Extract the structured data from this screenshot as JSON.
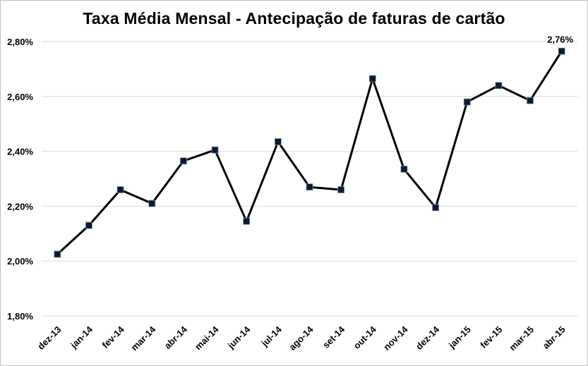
{
  "chart_data": {
    "type": "line",
    "title": "Taxa Média Mensal - Antecipação de faturas de cartão",
    "xlabel": "",
    "ylabel": "",
    "categories": [
      "dez-13",
      "jan-14",
      "fev-14",
      "mar-14",
      "abr-14",
      "mai-14",
      "jun-14",
      "jul-14",
      "ago-14",
      "set-14",
      "out-14",
      "nov-14",
      "dez-14",
      "jan-15",
      "fev-15",
      "mar-15",
      "abr-15"
    ],
    "series": [
      {
        "values": [
          2.025,
          2.13,
          2.26,
          2.21,
          2.365,
          2.405,
          2.145,
          2.435,
          2.27,
          2.26,
          2.665,
          2.335,
          2.195,
          2.58,
          2.64,
          2.585,
          2.765
        ]
      }
    ],
    "ylim": [
      1.8,
      2.8
    ],
    "yticks": [
      "1,80%",
      "2,00%",
      "2,20%",
      "2,40%",
      "2,60%",
      "2,80%"
    ],
    "ytick_values": [
      1.8,
      2.0,
      2.2,
      2.4,
      2.6,
      2.8
    ],
    "data_labels": [
      {
        "index": 16,
        "text": "2,76%"
      }
    ],
    "grid": true,
    "legend": "none",
    "line_color": "#000000",
    "marker_fill": "#0b1a2e",
    "grid_color": "#d9d9d9"
  }
}
